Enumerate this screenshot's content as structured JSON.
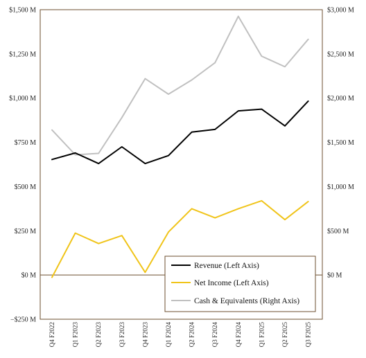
{
  "chart_data": {
    "type": "line",
    "categories": [
      "Q4 F2022",
      "Q1 F2023",
      "Q2 F2023",
      "Q3 F2023",
      "Q4 F2023",
      "Q1 F2024",
      "Q2 F2024",
      "Q3 F2024",
      "Q4 F2024",
      "Q1 F2025",
      "Q2 F2025",
      "Q3 F2025"
    ],
    "left_axis": {
      "ylim": [
        -250,
        1500
      ],
      "ticks": [
        -250,
        0,
        250,
        500,
        750,
        1000,
        1250,
        1500
      ],
      "tick_labels": [
        "−$250 M",
        "$0 M",
        "$250 M",
        "$500 M",
        "$750 M",
        "$1,000 M",
        "$1,250 M",
        "$1,500 M"
      ]
    },
    "right_axis": {
      "ylim": [
        -500,
        3000
      ],
      "ticks": [
        0,
        500,
        1000,
        1500,
        2000,
        2500,
        3000
      ],
      "tick_labels": [
        "$0 M",
        "$500 M",
        "$1,000 M",
        "$1,500 M",
        "$2,000 M",
        "$2,500 M",
        "$3,000 M"
      ]
    },
    "series": [
      {
        "name": "Revenue (Left Axis)",
        "axis": "left",
        "color": "#000000",
        "values": [
          653,
          690,
          630,
          725,
          630,
          675,
          808,
          823,
          928,
          938,
          843,
          983
        ]
      },
      {
        "name": "Net Income (Left Axis)",
        "axis": "left",
        "color": "#f0c419",
        "values": [
          -13,
          237,
          178,
          223,
          15,
          243,
          375,
          323,
          375,
          420,
          313,
          415
        ]
      },
      {
        "name": "Cash & Equivalents (Right Axis)",
        "axis": "right",
        "color": "#c0c0c0",
        "values": [
          1640,
          1360,
          1375,
          1780,
          2220,
          2045,
          2205,
          2400,
          2925,
          2475,
          2355,
          2665
        ]
      }
    ],
    "legend_position": "bottom-right",
    "grid": false
  }
}
